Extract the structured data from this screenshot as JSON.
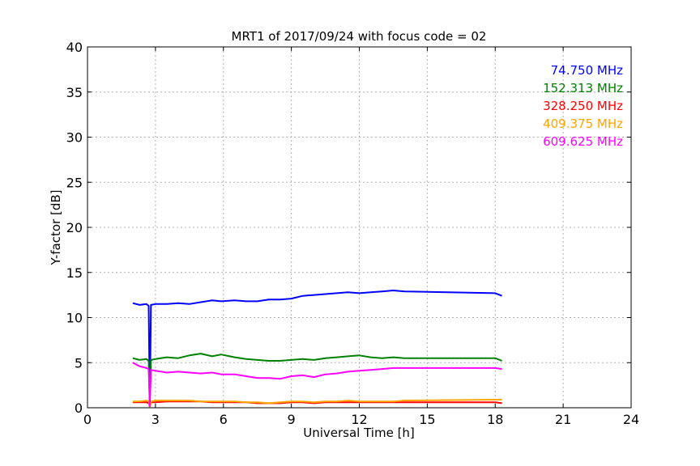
{
  "chart_data": {
    "type": "line",
    "title": "MRT1 of 2017/09/24 with focus code = 02",
    "xlabel": "Universal Time [h]",
    "ylabel": "Y-factor [dB]",
    "xlim": [
      0,
      24
    ],
    "ylim": [
      0,
      40
    ],
    "xticks": [
      0,
      3,
      6,
      9,
      12,
      15,
      18,
      21,
      24
    ],
    "yticks": [
      0,
      5,
      10,
      15,
      20,
      25,
      30,
      35,
      40
    ],
    "grid": true,
    "legend_position": "top-right",
    "series": [
      {
        "name": "74.750 MHz",
        "color": "#0000ff",
        "x": [
          2.0,
          2.3,
          2.6,
          2.7,
          2.75,
          2.8,
          3.0,
          3.5,
          4.0,
          4.5,
          5.0,
          5.5,
          5.9,
          6.5,
          7.0,
          7.5,
          8.0,
          8.5,
          9.0,
          9.5,
          10.0,
          10.5,
          11.0,
          11.5,
          12.0,
          12.5,
          13.0,
          13.5,
          14.0,
          18.0,
          18.3
        ],
        "y": [
          11.6,
          11.4,
          11.5,
          11.3,
          0.2,
          11.4,
          11.5,
          11.5,
          11.6,
          11.5,
          11.7,
          11.9,
          11.8,
          11.9,
          11.8,
          11.8,
          12.0,
          12.0,
          12.1,
          12.4,
          12.5,
          12.6,
          12.7,
          12.8,
          12.7,
          12.8,
          12.9,
          13.0,
          12.9,
          12.7,
          12.4
        ]
      },
      {
        "name": "152.313 MHz",
        "color": "#008000",
        "x": [
          2.0,
          2.3,
          2.6,
          2.7,
          2.75,
          2.8,
          3.0,
          3.5,
          4.0,
          4.5,
          5.0,
          5.5,
          5.9,
          6.5,
          7.0,
          7.5,
          8.0,
          8.5,
          9.0,
          9.5,
          10.0,
          10.5,
          11.0,
          11.5,
          12.0,
          12.5,
          13.0,
          13.5,
          14.0,
          18.0,
          18.3
        ],
        "y": [
          5.5,
          5.3,
          5.4,
          5.2,
          0.3,
          5.3,
          5.4,
          5.6,
          5.5,
          5.8,
          6.0,
          5.7,
          5.9,
          5.6,
          5.4,
          5.3,
          5.2,
          5.2,
          5.3,
          5.4,
          5.3,
          5.5,
          5.6,
          5.7,
          5.8,
          5.6,
          5.5,
          5.6,
          5.5,
          5.5,
          5.2
        ]
      },
      {
        "name": "328.250 MHz",
        "color": "#ff0000",
        "x": [
          2.0,
          2.3,
          2.6,
          2.7,
          2.75,
          2.8,
          3.0,
          3.5,
          4.0,
          4.5,
          5.0,
          5.5,
          5.9,
          6.5,
          7.0,
          7.5,
          8.0,
          8.5,
          9.0,
          9.5,
          10.0,
          10.5,
          11.0,
          11.5,
          12.0,
          12.5,
          13.0,
          13.5,
          14.0,
          18.0,
          18.3
        ],
        "y": [
          0.6,
          0.6,
          0.6,
          0.5,
          0.1,
          0.6,
          0.6,
          0.7,
          0.7,
          0.7,
          0.7,
          0.6,
          0.6,
          0.6,
          0.6,
          0.5,
          0.5,
          0.5,
          0.6,
          0.6,
          0.5,
          0.6,
          0.6,
          0.6,
          0.6,
          0.6,
          0.6,
          0.6,
          0.6,
          0.6,
          0.5
        ]
      },
      {
        "name": "409.375 MHz",
        "color": "#ffa500",
        "x": [
          2.0,
          2.3,
          2.6,
          2.7,
          2.75,
          2.8,
          3.0,
          3.5,
          4.0,
          4.5,
          5.0,
          5.5,
          5.9,
          6.5,
          7.0,
          7.5,
          8.0,
          8.5,
          9.0,
          9.5,
          10.0,
          10.5,
          11.0,
          11.5,
          12.0,
          12.5,
          13.0,
          13.5,
          14.0,
          18.0,
          18.3
        ],
        "y": [
          0.7,
          0.7,
          0.8,
          0.7,
          0.1,
          0.7,
          0.8,
          0.8,
          0.8,
          0.8,
          0.7,
          0.7,
          0.7,
          0.7,
          0.6,
          0.6,
          0.5,
          0.6,
          0.7,
          0.7,
          0.6,
          0.7,
          0.7,
          0.8,
          0.7,
          0.7,
          0.7,
          0.7,
          0.8,
          0.9,
          0.9
        ]
      },
      {
        "name": "609.625 MHz",
        "color": "#ff00ff",
        "x": [
          2.0,
          2.3,
          2.6,
          2.7,
          2.75,
          2.8,
          3.0,
          3.5,
          4.0,
          4.5,
          5.0,
          5.5,
          5.9,
          6.5,
          7.0,
          7.5,
          8.0,
          8.5,
          9.0,
          9.5,
          10.0,
          10.5,
          11.0,
          11.5,
          12.0,
          12.5,
          13.0,
          13.5,
          14.0,
          18.0,
          18.3
        ],
        "y": [
          5.0,
          4.6,
          4.4,
          4.3,
          0.2,
          4.2,
          4.1,
          3.9,
          4.0,
          3.9,
          3.8,
          3.9,
          3.7,
          3.7,
          3.5,
          3.3,
          3.3,
          3.2,
          3.5,
          3.6,
          3.4,
          3.7,
          3.8,
          4.0,
          4.1,
          4.2,
          4.3,
          4.4,
          4.4,
          4.4,
          4.3
        ]
      }
    ]
  }
}
